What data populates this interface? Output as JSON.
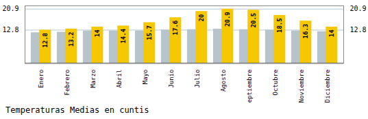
{
  "chart_data": {
    "type": "bar",
    "title": "Temperaturas Medias en cuntis",
    "categories": [
      "Enero",
      "Febrero",
      "Marzo",
      "Abril",
      "Mayo",
      "Junio",
      "Julio",
      "Agosto",
      "Septiembre",
      "Octubre",
      "Noviembre",
      "Diciembre"
    ],
    "series": [
      {
        "color": "#B8C4CC",
        "values": [
          11.8,
          12.0,
          12.5,
          12.5,
          12.5,
          12.8,
          13.0,
          13.2,
          13.0,
          12.8,
          12.5,
          12.2
        ]
      },
      {
        "color": "#F5C800",
        "values": [
          12.8,
          13.2,
          14.0,
          14.4,
          15.7,
          17.6,
          20.0,
          20.9,
          20.5,
          18.5,
          16.3,
          14.0
        ],
        "data_labels": true
      }
    ],
    "ylim": [
      0,
      22.154
    ],
    "yticks": [
      12.8,
      20.9
    ],
    "grid": true
  }
}
